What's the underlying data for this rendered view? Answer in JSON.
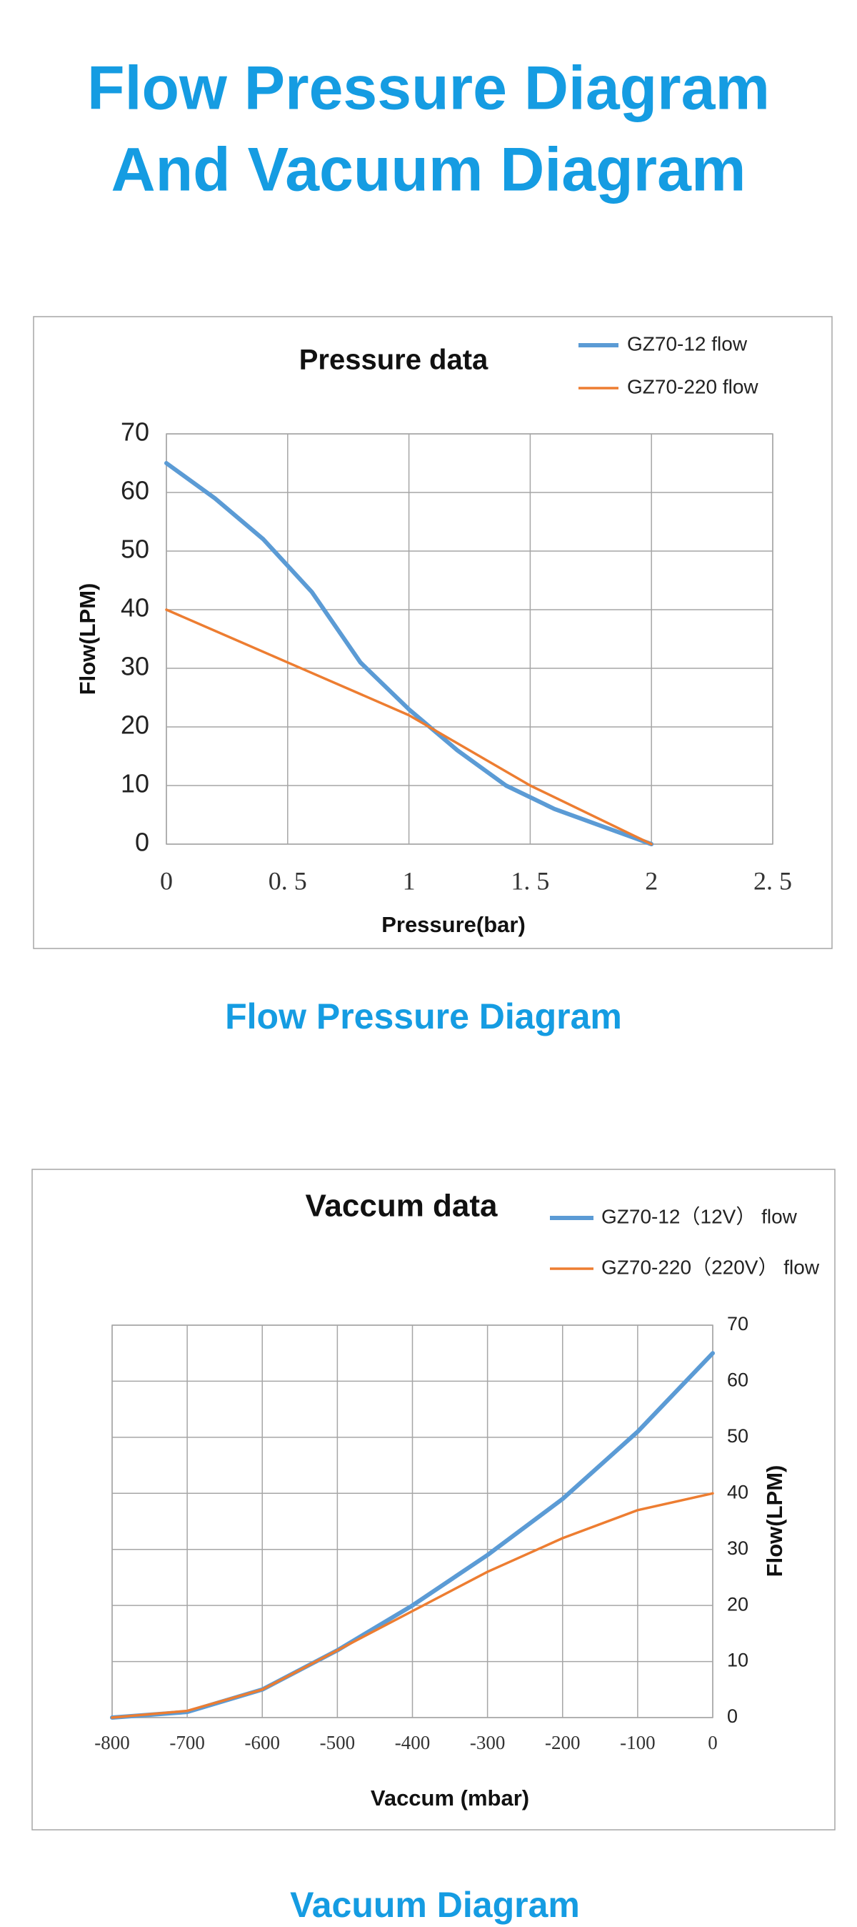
{
  "header": {
    "title": [
      "Flow Pressure Diagram",
      "And Vacuum Diagram"
    ]
  },
  "chart_data": [
    {
      "type": "line",
      "title": "Pressure data",
      "caption": "Flow Pressure Diagram",
      "x_label": "Pressure(bar)",
      "y_label": "Flow(LPM)",
      "xlim": [
        0,
        2.5
      ],
      "xticks": [
        0,
        {
          "value": 0.5,
          "label": "0. 5"
        },
        1,
        {
          "value": 1.5,
          "label": "1. 5"
        },
        2,
        {
          "value": 2.5,
          "label": "2. 5"
        }
      ],
      "ylim": [
        0,
        70
      ],
      "yticks": [
        0,
        10,
        20,
        30,
        40,
        50,
        60,
        70
      ],
      "y_axis_side": "left",
      "grid": true,
      "legend": "top-right",
      "series": [
        {
          "name": "GZ70-12 flow",
          "color": "#5b9bd5",
          "x": [
            0,
            0.2,
            0.4,
            0.6,
            0.8,
            1.0,
            1.2,
            1.4,
            1.6,
            1.8,
            2.0
          ],
          "values": [
            65,
            59,
            52,
            43,
            31,
            23,
            16,
            10,
            6,
            3,
            0
          ]
        },
        {
          "name": "GZ70-220 flow",
          "color": "#ed7d31",
          "x": [
            0,
            0.5,
            1.0,
            1.5,
            2.0
          ],
          "values": [
            40,
            31,
            22,
            10,
            0
          ]
        }
      ]
    },
    {
      "type": "line",
      "title": "Vaccum data",
      "caption": "Vacuum Diagram",
      "x_label": "Vaccum (mbar)",
      "y_label": "Flow(LPM)",
      "xlim": [
        -800,
        0
      ],
      "xticks": [
        -800,
        -700,
        -600,
        -500,
        -400,
        -300,
        -200,
        -100,
        0
      ],
      "ylim": [
        0,
        70
      ],
      "yticks": [
        0,
        10,
        20,
        30,
        40,
        50,
        60,
        70
      ],
      "y_axis_side": "right",
      "grid": true,
      "legend": "top-right",
      "series": [
        {
          "name": "GZ70-12（12V） flow",
          "color": "#5b9bd5",
          "x": [
            -800,
            -700,
            -600,
            -500,
            -400,
            -300,
            -200,
            -100,
            0
          ],
          "values": [
            0,
            1,
            5,
            12,
            20,
            29,
            39,
            51,
            65
          ]
        },
        {
          "name": "GZ70-220（220V） flow",
          "color": "#ed7d31",
          "x": [
            -800,
            -700,
            -600,
            -500,
            -400,
            -300,
            -200,
            -100,
            0
          ],
          "values": [
            0,
            1.2,
            5,
            12,
            19,
            26,
            32,
            37,
            40
          ]
        }
      ]
    }
  ]
}
